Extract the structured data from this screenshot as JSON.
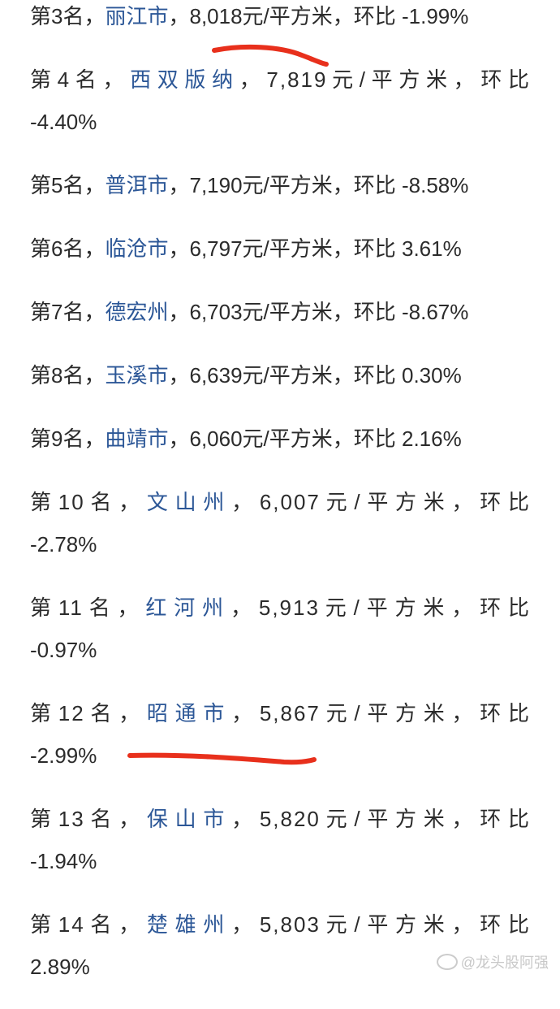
{
  "items": [
    {
      "rank": "第3名，",
      "city": "丽江市",
      "rest": "，8,018元/平方米，环比 ",
      "change": "-1.99%",
      "wrapped": false
    },
    {
      "rank": "第4名，",
      "city": "西双版纳",
      "rest": "，7,819元/平方米，环比",
      "change": "-4.40%",
      "wrapped": true
    },
    {
      "rank": "第5名，",
      "city": "普洱市",
      "rest": "，7,190元/平方米，环比 ",
      "change": "-8.58%",
      "wrapped": false
    },
    {
      "rank": "第6名，",
      "city": "临沧市",
      "rest": "，6,797元/平方米，环比 ",
      "change": "3.61%",
      "wrapped": false
    },
    {
      "rank": "第7名，",
      "city": "德宏州",
      "rest": "，6,703元/平方米，环比 ",
      "change": "-8.67%",
      "wrapped": false
    },
    {
      "rank": "第8名，",
      "city": "玉溪市",
      "rest": "，6,639元/平方米，环比 ",
      "change": "0.30%",
      "wrapped": false
    },
    {
      "rank": "第9名，",
      "city": "曲靖市",
      "rest": "，6,060元/平方米，环比 ",
      "change": "2.16%",
      "wrapped": false
    },
    {
      "rank": "第10名，",
      "city": "文山州",
      "rest": "，6,007元/平方米，环比",
      "change": "-2.78%",
      "wrapped": true
    },
    {
      "rank": "第11名，",
      "city": "红河州",
      "rest": "，5,913元/平方米，环比",
      "change": "-0.97%",
      "wrapped": true
    },
    {
      "rank": "第12名，",
      "city": "昭通市",
      "rest": "，5,867元/平方米，环比",
      "change": "-2.99%",
      "wrapped": true
    },
    {
      "rank": "第13名，",
      "city": "保山市",
      "rest": "，5,820元/平方米，环比",
      "change": "-1.94%",
      "wrapped": true
    },
    {
      "rank": "第14名，",
      "city": "楚雄州",
      "rest": "，5,803元/平方米，环比",
      "change": "2.89%",
      "wrapped": true
    }
  ],
  "colors": {
    "city_link": "#2c5797",
    "highlight_stroke": "#e8301c"
  },
  "watermark": "@龙头股阿强"
}
